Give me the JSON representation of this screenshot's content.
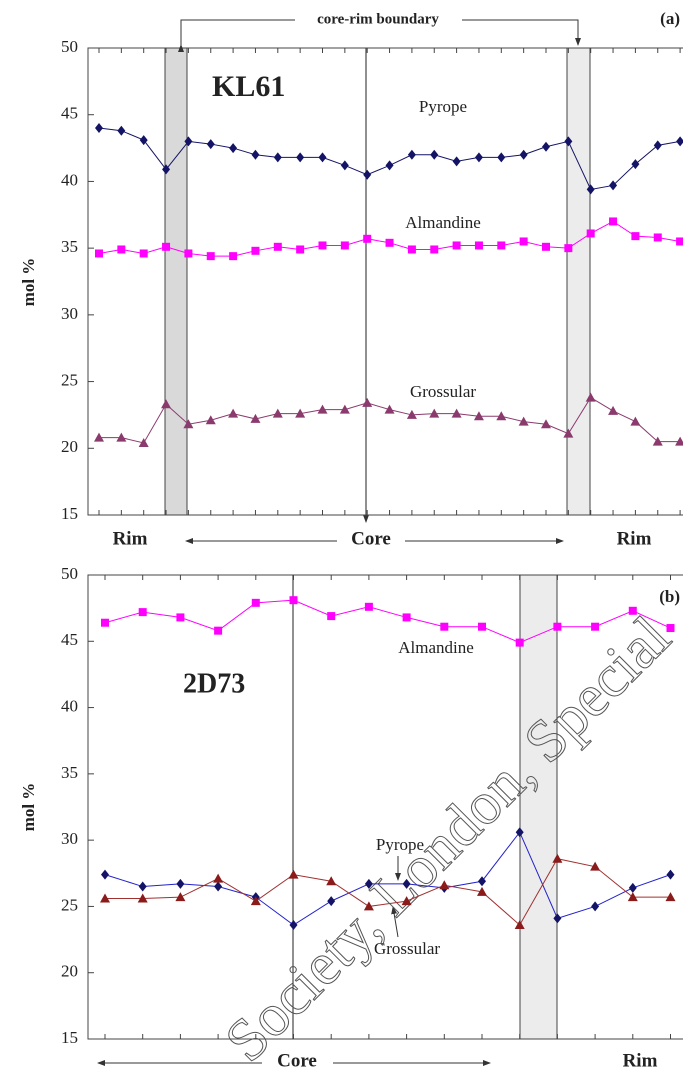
{
  "chart_data": [
    {
      "type": "line",
      "panel_label": "(a)",
      "sample": "KL61",
      "ylabel": "mol %",
      "annotations": [
        "core-rim boundary",
        "Rim",
        "Core",
        "Rim"
      ],
      "categories": [
        null,
        null,
        null,
        null,
        null,
        null,
        null,
        null,
        null,
        null,
        null,
        null,
        null,
        null,
        null,
        null,
        null,
        null,
        null,
        null,
        null,
        null,
        null,
        null,
        null,
        null,
        null
      ],
      "ylim": [
        15,
        50
      ],
      "yticks": [
        15,
        20,
        25,
        30,
        35,
        40,
        45,
        50
      ],
      "series": [
        {
          "name": "Pyrope",
          "color": "#141466",
          "marker": "diamond",
          "values": [
            44.0,
            43.8,
            43.1,
            40.9,
            43.0,
            42.8,
            42.5,
            42.0,
            41.8,
            41.8,
            41.8,
            41.2,
            40.5,
            41.2,
            42.0,
            42.0,
            41.5,
            41.8,
            41.8,
            42.0,
            42.6,
            43.0,
            39.4,
            39.7,
            41.3,
            42.7,
            43.0
          ]
        },
        {
          "name": "Almandine",
          "color": "#ff00ff",
          "marker": "square",
          "values": [
            34.6,
            34.9,
            34.6,
            35.1,
            34.6,
            34.4,
            34.4,
            34.8,
            35.1,
            34.9,
            35.2,
            35.2,
            35.7,
            35.4,
            34.9,
            34.9,
            35.2,
            35.2,
            35.2,
            35.5,
            35.1,
            35.0,
            36.1,
            37.0,
            35.9,
            35.8,
            35.5
          ]
        },
        {
          "name": "Grossular",
          "color": "#8b3a6e",
          "marker": "triangle",
          "values": [
            20.8,
            20.8,
            20.4,
            23.3,
            21.8,
            22.1,
            22.6,
            22.2,
            22.6,
            22.6,
            22.9,
            22.9,
            23.4,
            22.9,
            22.5,
            22.6,
            22.6,
            22.4,
            22.4,
            22.0,
            21.8,
            21.1,
            23.8,
            22.8,
            22.0,
            20.5,
            20.5
          ]
        }
      ]
    },
    {
      "type": "line",
      "panel_label": "(b)",
      "sample": "2D73",
      "ylabel": "mol %",
      "annotations": [
        "Core",
        "Rim",
        "Society, London, Special"
      ],
      "categories": [
        null,
        null,
        null,
        null,
        null,
        null,
        null,
        null,
        null,
        null,
        null,
        null,
        null,
        null,
        null,
        null
      ],
      "ylim": [
        15,
        50
      ],
      "yticks": [
        15,
        20,
        25,
        30,
        35,
        40,
        45,
        50
      ],
      "series": [
        {
          "name": "Almandine",
          "color": "#ff00ff",
          "marker": "square",
          "values": [
            46.4,
            47.2,
            46.8,
            45.8,
            47.9,
            48.1,
            46.9,
            47.6,
            46.8,
            46.1,
            46.1,
            44.9,
            46.1,
            46.1,
            47.3,
            46.0
          ]
        },
        {
          "name": "Pyrope",
          "color": "#141466",
          "line_color": "#2222cc",
          "marker": "diamond",
          "values": [
            27.4,
            26.5,
            26.7,
            26.5,
            25.7,
            23.6,
            25.4,
            26.7,
            26.7,
            26.4,
            26.9,
            30.6,
            24.1,
            25.0,
            26.4,
            27.4
          ]
        },
        {
          "name": "Grossular",
          "color": "#8b1a1a",
          "line_color": "#a03030",
          "marker": "triangle",
          "values": [
            25.6,
            25.6,
            25.7,
            27.1,
            25.4,
            27.4,
            26.9,
            25.0,
            25.4,
            26.6,
            26.1,
            23.6,
            28.6,
            28.0,
            25.7,
            25.7
          ]
        }
      ]
    }
  ]
}
